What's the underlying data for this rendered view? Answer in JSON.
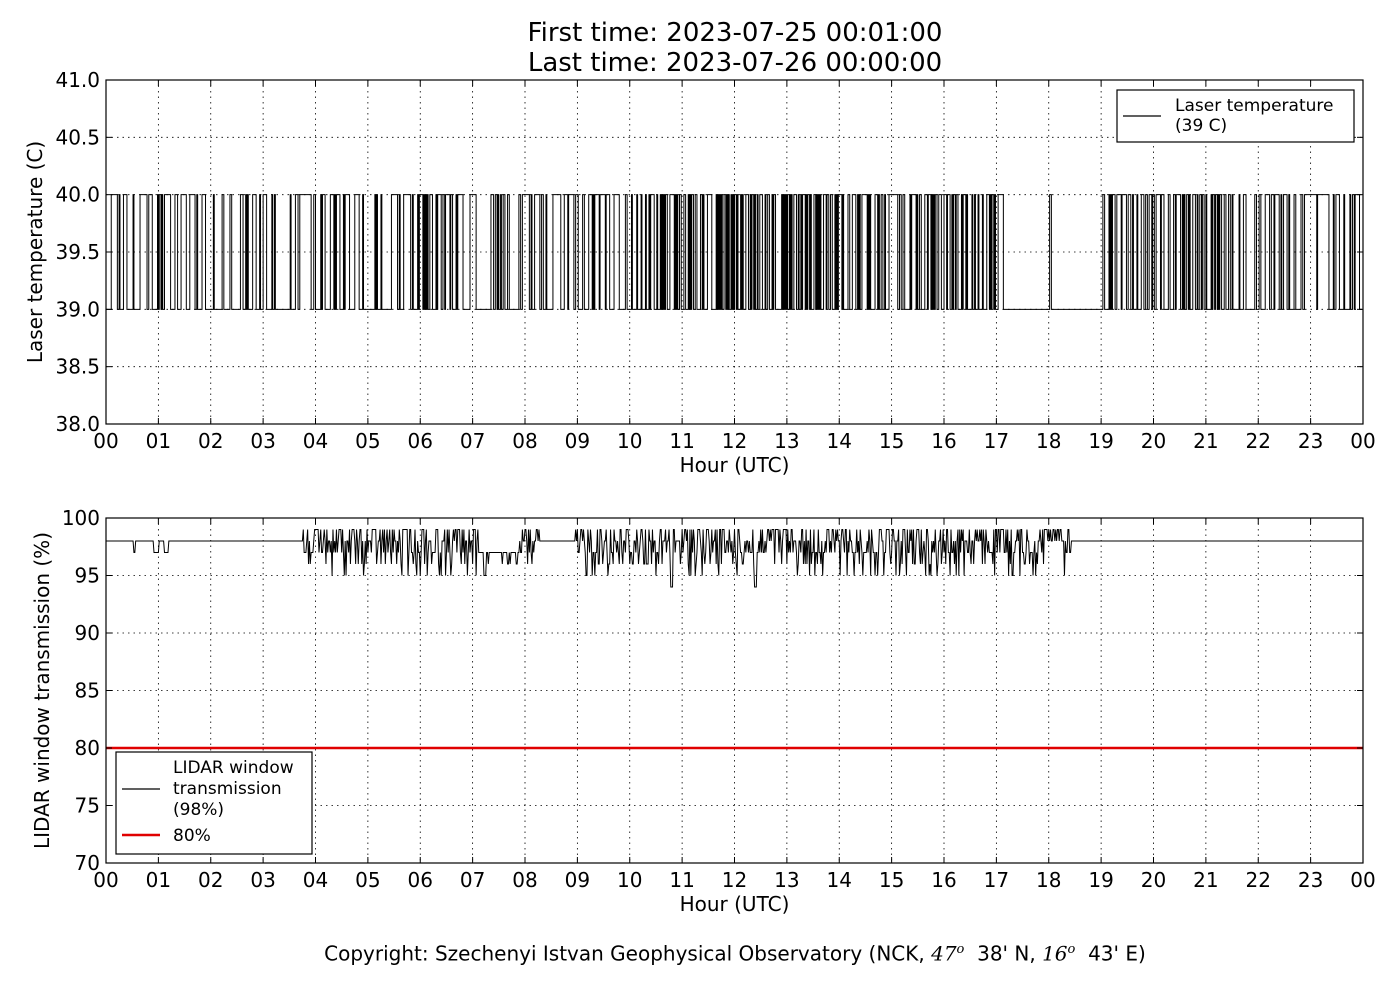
{
  "header": {
    "title_line1": "First time: 2023-07-25 00:01:00",
    "title_line2": "Last time: 2023-07-26 00:00:00"
  },
  "footer": {
    "copyright_prefix": "Copyright: Szechenyi Istvan Geophysical Observatory (NCK,",
    "lat_deg": "47",
    "lat_min": "38' N,",
    "lon_deg": "16",
    "lon_min": "43' E)",
    "degree_symbol": "o"
  },
  "chart_data": [
    {
      "type": "line",
      "xlabel": "Hour (UTC)",
      "ylabel": "Laser temperature (C)",
      "xlim": [
        0,
        24
      ],
      "ylim": [
        38.0,
        41.0
      ],
      "x_ticks": [
        "00",
        "01",
        "02",
        "03",
        "04",
        "05",
        "06",
        "07",
        "08",
        "09",
        "10",
        "11",
        "12",
        "13",
        "14",
        "15",
        "16",
        "17",
        "18",
        "19",
        "20",
        "21",
        "22",
        "23",
        "00"
      ],
      "y_ticks": [
        "38.0",
        "38.5",
        "39.0",
        "39.5",
        "40.0",
        "40.5",
        "41.0"
      ],
      "grid": true,
      "legend_position": "top-right",
      "series": [
        {
          "name": "Laser temperature",
          "legend_sub": "(39 C)",
          "color": "#000000",
          "levels": [
            39.0,
            40.0
          ],
          "note_values": "signal toggles between 39.0 and 40.0 throughout the day; long flat 39.0 stretch 17:10-18:00 and 18:05-18:35"
        }
      ]
    },
    {
      "type": "line",
      "xlabel": "Hour (UTC)",
      "ylabel": "LIDAR window transmission (%)",
      "xlim": [
        0,
        24
      ],
      "ylim": [
        70,
        100
      ],
      "x_ticks": [
        "00",
        "01",
        "02",
        "03",
        "04",
        "05",
        "06",
        "07",
        "08",
        "09",
        "10",
        "11",
        "12",
        "13",
        "14",
        "15",
        "16",
        "17",
        "18",
        "19",
        "20",
        "21",
        "22",
        "23",
        "00"
      ],
      "y_ticks": [
        "70",
        "75",
        "80",
        "85",
        "90",
        "95",
        "100"
      ],
      "grid": true,
      "legend_position": "bottom-left",
      "series": [
        {
          "name": "LIDAR window transmission",
          "legend_lines": [
            "LIDAR window",
            "transmission",
            "(98%)"
          ],
          "color": "#000000",
          "baseline": 98,
          "range": [
            94,
            99
          ]
        },
        {
          "name": "80%",
          "color": "#e00000",
          "x": [
            0,
            24
          ],
          "values": [
            80,
            80
          ]
        }
      ]
    }
  ]
}
